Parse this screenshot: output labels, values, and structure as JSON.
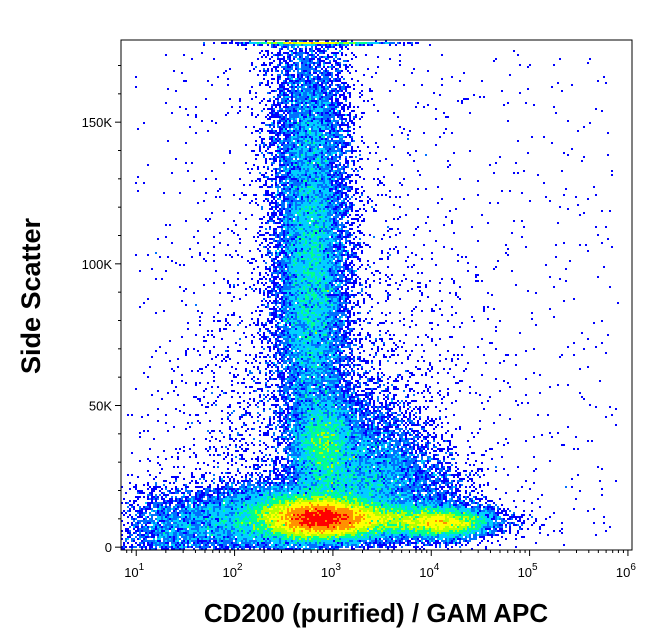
{
  "chart_data": {
    "type": "scatter",
    "subtype": "flow-cytometry density dot plot",
    "title": "",
    "xlabel": "CD200 (purified) / GAM APC",
    "ylabel": "Side Scatter",
    "x_scale": "log",
    "y_scale": "linear",
    "xlim": [
      7,
      1100000
    ],
    "ylim": [
      -1000,
      179000
    ],
    "x_ticks": [
      {
        "value": 10,
        "base": "10",
        "exp": "1"
      },
      {
        "value": 100,
        "base": "10",
        "exp": "2"
      },
      {
        "value": 1000,
        "base": "10",
        "exp": "3"
      },
      {
        "value": 10000,
        "base": "10",
        "exp": "4"
      },
      {
        "value": 100000,
        "base": "10",
        "exp": "5"
      },
      {
        "value": 1000000,
        "base": "10",
        "exp": "6"
      }
    ],
    "y_ticks": [
      {
        "value": 0,
        "label": "0"
      },
      {
        "value": 50000,
        "label": "50K"
      },
      {
        "value": 100000,
        "label": "100K"
      },
      {
        "value": 150000,
        "label": "150K"
      }
    ],
    "color_scale": [
      "#0000ff",
      "#0070ff",
      "#00d0ff",
      "#00ff90",
      "#b0ff00",
      "#ffff00",
      "#ff9000",
      "#ff0000"
    ],
    "grid": false,
    "legend": "none",
    "populations": [
      {
        "x_center": 750,
        "y_center": 10000,
        "relative_density": 1.0
      },
      {
        "x_center": 600,
        "y_center": 95000,
        "relative_density": 0.45
      },
      {
        "x_center": 800,
        "y_center": 35000,
        "relative_density": 0.35
      },
      {
        "x_center": 200,
        "y_center": 12000,
        "relative_density": 0.6
      },
      {
        "x_center": 15000,
        "y_center": 9000,
        "relative_density": 0.55
      }
    ]
  }
}
